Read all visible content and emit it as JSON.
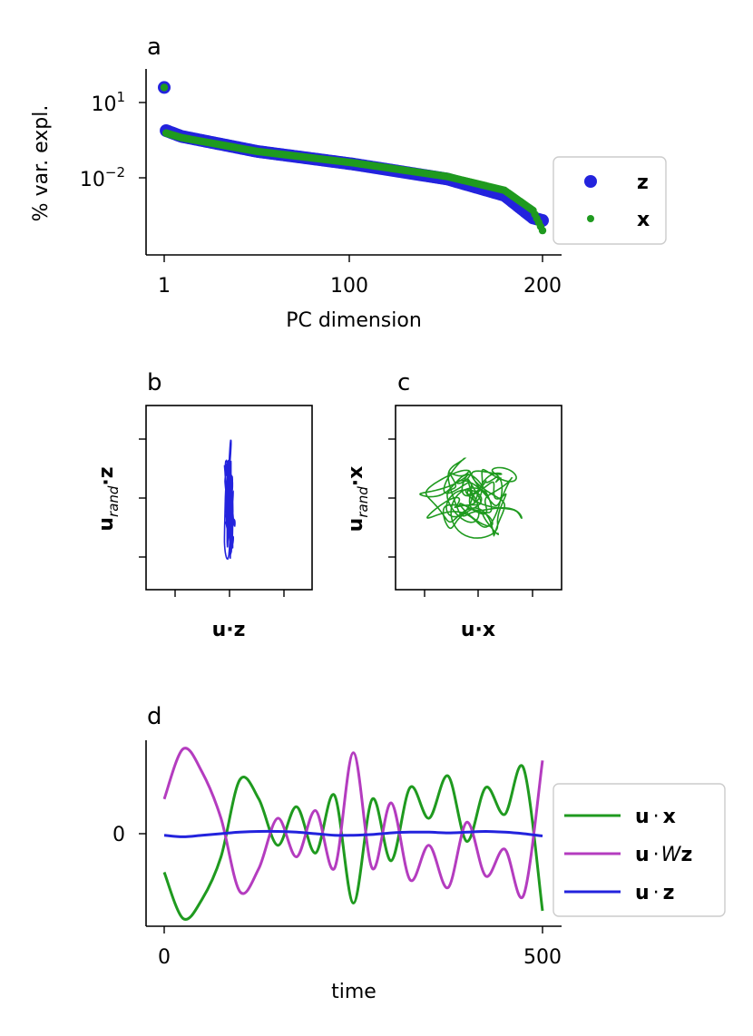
{
  "colors": {
    "z": "#2323dd",
    "x": "#1f9a1f",
    "wz": "#b43cbf"
  },
  "panels": {
    "a": {
      "label": "a",
      "chart_data": {
        "type": "scatter",
        "xlabel": "PC dimension",
        "ylabel": "% var. expl.",
        "xticks": [
          "1",
          "100",
          "200"
        ],
        "xlim": [
          1,
          200
        ],
        "yscale": "log",
        "yticks": [
          {
            "base": "10",
            "exp": "1"
          },
          {
            "base": "10",
            "exp": "−2"
          }
        ],
        "ylim_log10": [
          -4.8,
          2.2
        ],
        "series": [
          {
            "name": "z",
            "description": "first value ~40, drops to ~0.6 at dim 2, roughly log-linear decline to ~5e-4 at dim 200",
            "anchors_x": [
              1,
              2,
              10,
              50,
              100,
              150,
              180,
              195,
              200
            ],
            "anchors_log10y": [
              1.6,
              -0.12,
              -0.35,
              -0.95,
              -1.45,
              -2.05,
              -2.7,
              -3.6,
              -3.7
            ]
          },
          {
            "name": "x",
            "description": "first value ~40, drops to ~0.4 at dim 2, roughly log-linear decline to ~1e-4 at dim 200",
            "anchors_x": [
              1,
              2,
              10,
              50,
              100,
              150,
              180,
              195,
              200
            ],
            "anchors_log10y": [
              1.6,
              -0.22,
              -0.4,
              -0.95,
              -1.4,
              -1.95,
              -2.5,
              -3.3,
              -4.1
            ]
          }
        ],
        "legend": {
          "position": "right",
          "entries": [
            "z",
            "x"
          ]
        }
      }
    },
    "b": {
      "label": "b",
      "chart_data": {
        "type": "line",
        "xlabel": "u·z",
        "ylabel_main": "u",
        "ylabel_sub": "rand",
        "ylabel_tail": "·z",
        "description": "trajectory of z projected onto u and a random direction; very narrow vertical band",
        "x_spread": 0.05,
        "y_spread": 1.0
      }
    },
    "c": {
      "label": "c",
      "chart_data": {
        "type": "line",
        "xlabel": "u·x",
        "ylabel_main": "u",
        "ylabel_sub": "rand",
        "ylabel_tail": "·x",
        "description": "trajectory of x projected onto u and a random direction; tangled isotropic loops",
        "x_spread": 1.0,
        "y_spread": 1.0
      }
    },
    "d": {
      "label": "d",
      "chart_data": {
        "type": "line",
        "xlabel": "time",
        "xticks": [
          "0",
          "500"
        ],
        "xlim": [
          0,
          500
        ],
        "yticks": [
          "0"
        ],
        "ylim": [
          -1.2,
          1.2
        ],
        "x": [
          0,
          25,
          50,
          75,
          100,
          125,
          150,
          175,
          200,
          225,
          250,
          275,
          300,
          325,
          350,
          375,
          400,
          425,
          450,
          475,
          500
        ],
        "series": [
          {
            "name": "u·x",
            "values": [
              -0.5,
              -1.1,
              -0.85,
              -0.3,
              0.7,
              0.45,
              -0.15,
              0.35,
              -0.25,
              0.5,
              -0.9,
              0.45,
              -0.35,
              0.6,
              0.2,
              0.75,
              -0.1,
              0.6,
              0.25,
              0.85,
              -1.0
            ]
          },
          {
            "name": "u·Wz",
            "values": [
              0.45,
              1.1,
              0.8,
              0.2,
              -0.75,
              -0.45,
              0.2,
              -0.3,
              0.3,
              -0.45,
              1.05,
              -0.45,
              0.4,
              -0.6,
              -0.15,
              -0.7,
              0.15,
              -0.55,
              -0.2,
              -0.8,
              0.95
            ]
          },
          {
            "name": "u·z",
            "values": [
              -0.02,
              -0.04,
              -0.02,
              0.0,
              0.02,
              0.03,
              0.03,
              0.02,
              0.0,
              -0.02,
              -0.02,
              -0.01,
              0.01,
              0.02,
              0.02,
              0.01,
              0.02,
              0.03,
              0.02,
              0.0,
              -0.03
            ]
          }
        ],
        "legend": {
          "position": "right",
          "entries": [
            {
              "pre": "u",
              "mid": "·",
              "italic": "",
              "post": "x"
            },
            {
              "pre": "u",
              "mid": "·",
              "italic": "W",
              "post": "z"
            },
            {
              "pre": "u",
              "mid": "·",
              "italic": "",
              "post": "z"
            }
          ]
        }
      }
    }
  }
}
